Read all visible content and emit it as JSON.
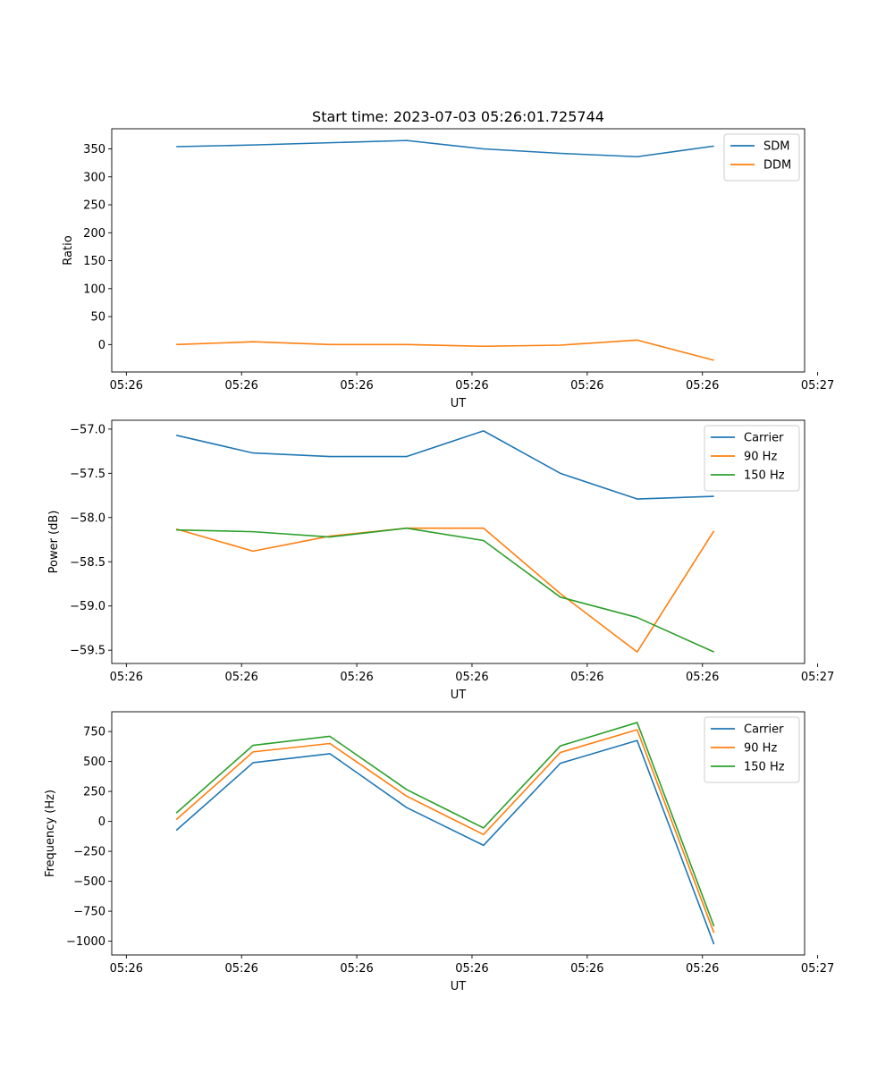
{
  "figure_title": "Start time: 2023-07-03 05:26:01.725744",
  "chart_data": [
    {
      "type": "line",
      "title": "Start time: 2023-07-03 05:26:01.725744",
      "xlabel": "UT",
      "ylabel": "Ratio",
      "x": [
        1,
        2,
        3,
        4,
        5,
        6,
        7,
        8
      ],
      "xlim": [
        0.16,
        9.18
      ],
      "x_ticks": [
        0.35,
        1.85,
        3.35,
        4.85,
        6.35,
        7.85,
        9.35
      ],
      "x_tick_labels": [
        "05:26",
        "05:26",
        "05:26",
        "05:26",
        "05:26",
        "05:26",
        "05:27"
      ],
      "ylim": [
        -49,
        386
      ],
      "y_ticks": [
        0,
        50,
        100,
        150,
        200,
        250,
        300,
        350
      ],
      "y_tick_labels": [
        "0",
        "50",
        "100",
        "150",
        "200",
        "250",
        "300",
        "350"
      ],
      "legend_position": "top-right",
      "series": [
        {
          "name": "SDM",
          "color": "#1f77b4",
          "values": [
            354,
            357,
            361,
            365,
            350,
            342,
            336,
            355
          ]
        },
        {
          "name": "DDM",
          "color": "#ff7f0e",
          "values": [
            0,
            5,
            0,
            0,
            -3,
            -1,
            8,
            -28
          ]
        }
      ]
    },
    {
      "type": "line",
      "title": "",
      "xlabel": "UT",
      "ylabel": "Power (dB)",
      "x": [
        1,
        2,
        3,
        4,
        5,
        6,
        7,
        8
      ],
      "xlim": [
        0.16,
        9.18
      ],
      "x_ticks": [
        0.35,
        1.85,
        3.35,
        4.85,
        6.35,
        7.85,
        9.35
      ],
      "x_tick_labels": [
        "05:26",
        "05:26",
        "05:26",
        "05:26",
        "05:26",
        "05:26",
        "05:27"
      ],
      "ylim": [
        -59.65,
        -56.9
      ],
      "y_ticks": [
        -57.0,
        -57.5,
        -58.0,
        -58.5,
        -59.0,
        -59.5
      ],
      "y_tick_labels": [
        "−57.0",
        "−57.5",
        "−58.0",
        "−58.5",
        "−59.0",
        "−59.5"
      ],
      "legend_position": "top-right",
      "series": [
        {
          "name": "Carrier",
          "color": "#1f77b4",
          "values": [
            -57.07,
            -57.27,
            -57.31,
            -57.31,
            -57.02,
            -57.5,
            -57.79,
            -57.76
          ]
        },
        {
          "name": "90 Hz",
          "color": "#ff7f0e",
          "values": [
            -58.13,
            -58.38,
            -58.21,
            -58.12,
            -58.12,
            -58.86,
            -59.52,
            -58.15
          ]
        },
        {
          "name": "150 Hz",
          "color": "#2ca02c",
          "values": [
            -58.14,
            -58.16,
            -58.22,
            -58.12,
            -58.26,
            -58.9,
            -59.13,
            -59.52
          ]
        }
      ]
    },
    {
      "type": "line",
      "title": "",
      "xlabel": "UT",
      "ylabel": "Frequency (Hz)",
      "x": [
        1,
        2,
        3,
        4,
        5,
        6,
        7,
        8
      ],
      "xlim": [
        0.16,
        9.18
      ],
      "x_ticks": [
        0.35,
        1.85,
        3.35,
        4.85,
        6.35,
        7.85,
        9.35
      ],
      "x_tick_labels": [
        "05:26",
        "05:26",
        "05:26",
        "05:26",
        "05:26",
        "05:26",
        "05:27"
      ],
      "ylim": [
        -1115,
        915
      ],
      "y_ticks": [
        750,
        500,
        250,
        0,
        -250,
        -500,
        -750,
        -1000
      ],
      "y_tick_labels": [
        "750",
        "500",
        "250",
        "0",
        "−250",
        "−500",
        "−750",
        "−1000"
      ],
      "legend_position": "top-right",
      "series": [
        {
          "name": "Carrier",
          "color": "#1f77b4",
          "values": [
            -75,
            490,
            565,
            115,
            -200,
            485,
            675,
            -1025
          ]
        },
        {
          "name": "90 Hz",
          "color": "#ff7f0e",
          "values": [
            15,
            580,
            650,
            210,
            -110,
            575,
            765,
            -930
          ]
        },
        {
          "name": "150 Hz",
          "color": "#2ca02c",
          "values": [
            70,
            635,
            710,
            265,
            -55,
            630,
            825,
            -875
          ]
        }
      ]
    }
  ]
}
